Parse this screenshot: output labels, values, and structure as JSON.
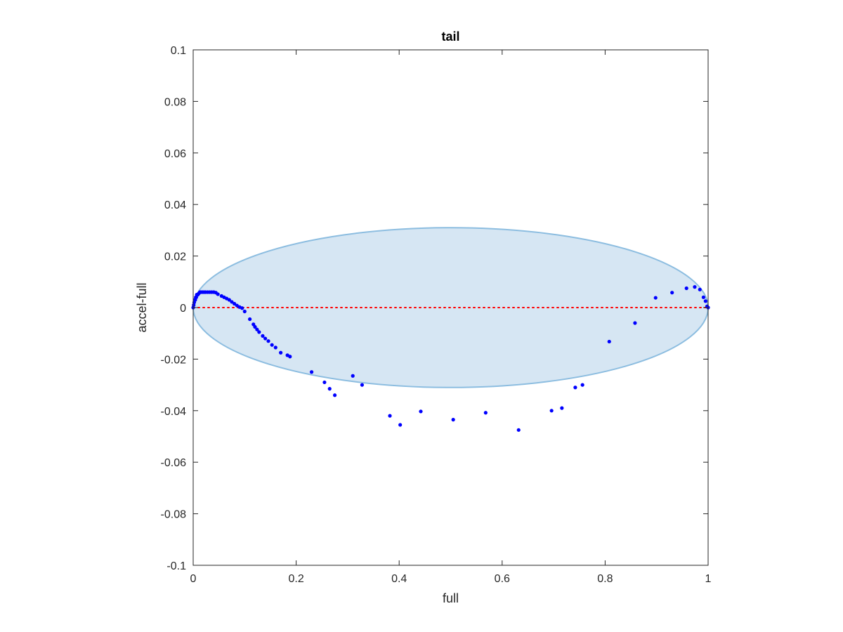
{
  "chart_data": {
    "type": "scatter",
    "title": "tail",
    "xlabel": "full",
    "ylabel": "accel-full",
    "xlim": [
      0,
      1
    ],
    "ylim": [
      -0.1,
      0.1
    ],
    "x_ticks": [
      0,
      0.2,
      0.4,
      0.6,
      0.8,
      1
    ],
    "x_tick_labels": [
      "0",
      "0.2",
      "0.4",
      "0.6",
      "0.8",
      "1"
    ],
    "y_ticks": [
      -0.1,
      -0.08,
      -0.06,
      -0.04,
      -0.02,
      0,
      0.02,
      0.04,
      0.06,
      0.08,
      0.1
    ],
    "y_tick_labels": [
      "-0.1",
      "-0.08",
      "-0.06",
      "-0.04",
      "-0.02",
      "0",
      "0.02",
      "0.04",
      "0.06",
      "0.08",
      "0.1"
    ],
    "grid": false,
    "colors": {
      "points": "#0000ff",
      "ellipse_fill": "#d6e6f3",
      "ellipse_edge": "#8cbde0",
      "zero_line": "#ff0000",
      "axes": "#262626"
    },
    "ellipse": {
      "center_x": 0.5,
      "center_y": 0,
      "semi_axis_x": 0.5,
      "semi_axis_y": 0.031
    },
    "reference_line": {
      "y": 0,
      "style": "dotted"
    },
    "series": [
      {
        "x": [
          0.0,
          0.001,
          0.002,
          0.003,
          0.004,
          0.005,
          0.006,
          0.007,
          0.009,
          0.011,
          0.013,
          0.015,
          0.018,
          0.021,
          0.024,
          0.028,
          0.032,
          0.036,
          0.04,
          0.044,
          0.048,
          0.055,
          0.06,
          0.065,
          0.07,
          0.075,
          0.08,
          0.085,
          0.09,
          0.095,
          0.1,
          0.11,
          0.117,
          0.12,
          0.124,
          0.128,
          0.135,
          0.14,
          0.146,
          0.153,
          0.16,
          0.17,
          0.183,
          0.188,
          0.23,
          0.255,
          0.265,
          0.275,
          0.31,
          0.328,
          0.382,
          0.402,
          0.442,
          0.505,
          0.568,
          0.632,
          0.696,
          0.716,
          0.742,
          0.756,
          0.808,
          0.858,
          0.898,
          0.93,
          0.958,
          0.974,
          0.984,
          0.991,
          0.995,
          0.998,
          1.0
        ],
        "y": [
          0.0,
          0.001,
          0.002,
          0.003,
          0.003,
          0.004,
          0.004,
          0.005,
          0.005,
          0.0055,
          0.006,
          0.006,
          0.006,
          0.006,
          0.006,
          0.006,
          0.006,
          0.006,
          0.006,
          0.0058,
          0.0052,
          0.0045,
          0.004,
          0.0035,
          0.003,
          0.0022,
          0.0015,
          0.0008,
          0.0002,
          -0.0002,
          -0.0015,
          -0.0045,
          -0.0065,
          -0.0075,
          -0.0085,
          -0.0095,
          -0.011,
          -0.012,
          -0.013,
          -0.0145,
          -0.0155,
          -0.0175,
          -0.0185,
          -0.019,
          -0.025,
          -0.029,
          -0.0315,
          -0.034,
          -0.0265,
          -0.03,
          -0.042,
          -0.0455,
          -0.0403,
          -0.0435,
          -0.0408,
          -0.0475,
          -0.04,
          -0.039,
          -0.031,
          -0.03,
          -0.0132,
          -0.006,
          0.0038,
          0.0058,
          0.0075,
          0.008,
          0.007,
          0.004,
          0.0025,
          0.0005,
          0.0
        ]
      }
    ]
  }
}
